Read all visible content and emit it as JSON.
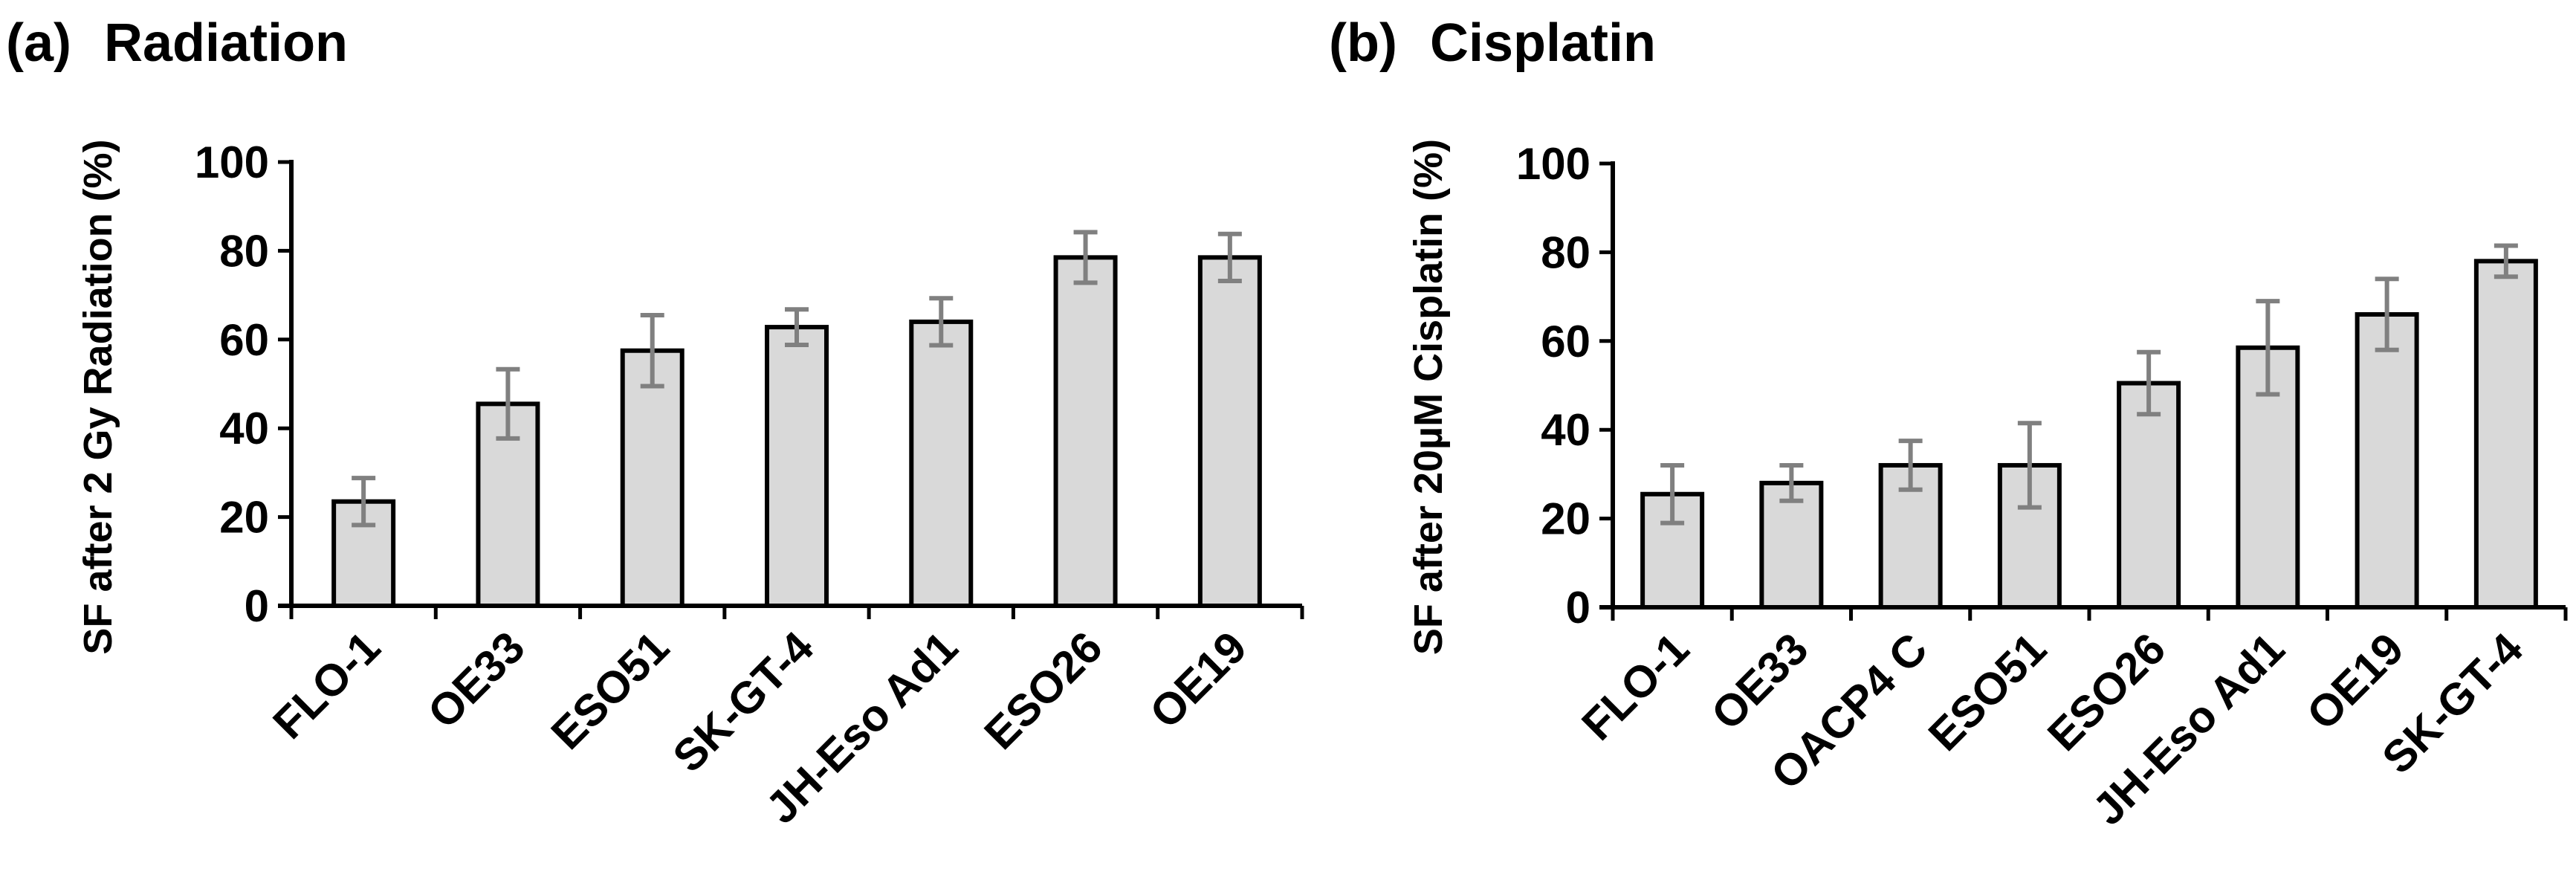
{
  "chart_data": [
    {
      "type": "bar",
      "panel_label": "(a)",
      "title": "Radiation",
      "ylabel": "SF after 2 Gy Radiation  (%)",
      "xlabel": "",
      "ylim": [
        0,
        100
      ],
      "yticks": [
        0,
        20,
        40,
        60,
        80,
        100
      ],
      "categories": [
        "FLO-1",
        "OE33",
        "ESO51",
        "SK-GT-4",
        "JH-Eso Ad1",
        "ESO26",
        "OE19"
      ],
      "values": [
        23.5,
        45.5,
        57.5,
        62.8,
        64.0,
        78.5,
        78.5
      ],
      "errors": [
        5.3,
        7.8,
        8.0,
        4.0,
        5.3,
        5.7,
        5.3
      ],
      "bar_color": "#d9d9d9",
      "error_color": "#808080"
    },
    {
      "type": "bar",
      "panel_label": "(b)",
      "title": "Cisplatin",
      "ylabel": "SF after 20µM Cisplatin  (%)",
      "xlabel": "",
      "ylim": [
        0,
        100
      ],
      "yticks": [
        0,
        20,
        40,
        60,
        80,
        100
      ],
      "categories": [
        "FLO-1",
        "OE33",
        "OACP4 C",
        "ESO51",
        "ESO26",
        "JH-Eso Ad1",
        "OE19",
        "SK-GT-4"
      ],
      "values": [
        25.5,
        28.0,
        32.0,
        32.0,
        50.5,
        58.5,
        66.0,
        78.0
      ],
      "errors": [
        6.5,
        4.0,
        5.5,
        9.5,
        7.0,
        10.5,
        8.0,
        3.5
      ],
      "bar_color": "#d9d9d9",
      "error_color": "#808080"
    }
  ]
}
